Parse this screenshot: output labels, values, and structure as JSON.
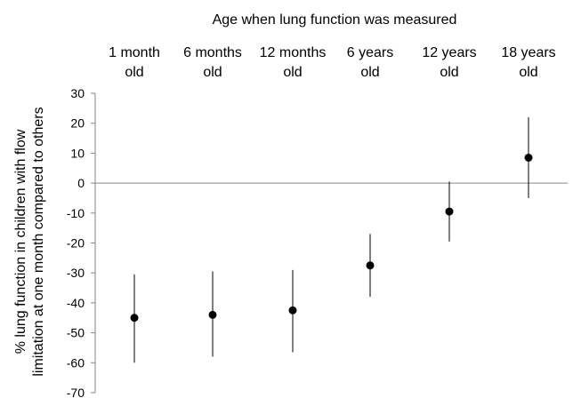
{
  "chart_data": {
    "type": "scatter",
    "title": "Age when lung function was measured",
    "ylabel_lines": [
      "% lung function in children with flow",
      "limitation at one month compared to others"
    ],
    "categories": [
      [
        "1 month",
        "old"
      ],
      [
        "6 months",
        "old"
      ],
      [
        "12 months",
        "old"
      ],
      [
        "6 years",
        "old"
      ],
      [
        "12 years",
        "old"
      ],
      [
        "18 years",
        "old"
      ]
    ],
    "values": [
      -45,
      -44,
      -42.5,
      -27.5,
      -9.5,
      8.5
    ],
    "error_low": [
      -60,
      -58,
      -56.5,
      -38,
      -19.5,
      -5
    ],
    "error_high": [
      -30.5,
      -29.5,
      -29,
      -17,
      0.5,
      22
    ],
    "ylim": [
      -70,
      30
    ],
    "yticks": [
      30,
      20,
      10,
      0,
      -10,
      -20,
      -30,
      -40,
      -50,
      -60,
      -70
    ],
    "zero_line": true,
    "grid": false,
    "legend": "none"
  }
}
